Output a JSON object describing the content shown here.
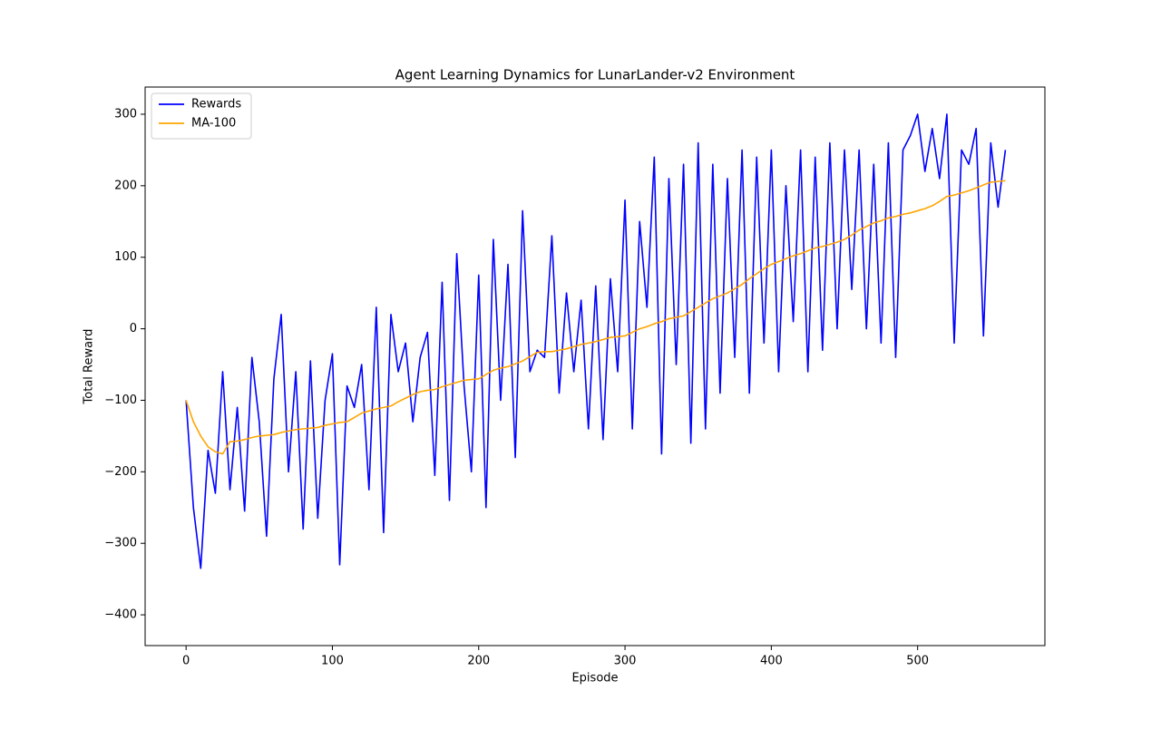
{
  "chart_data": {
    "type": "line",
    "title": "Agent Learning Dynamics for LunarLander-v2 Environment",
    "x_label": "Episode",
    "y_label": "Total Reward",
    "x": [
      0,
      5,
      10,
      15,
      20,
      25,
      30,
      35,
      40,
      45,
      50,
      55,
      60,
      65,
      70,
      75,
      80,
      85,
      90,
      95,
      100,
      105,
      110,
      115,
      120,
      125,
      130,
      135,
      140,
      145,
      150,
      155,
      160,
      165,
      170,
      175,
      180,
      185,
      190,
      195,
      200,
      205,
      210,
      215,
      220,
      225,
      230,
      235,
      240,
      245,
      250,
      255,
      260,
      265,
      270,
      275,
      280,
      285,
      290,
      295,
      300,
      305,
      310,
      315,
      320,
      325,
      330,
      335,
      340,
      345,
      350,
      355,
      360,
      365,
      370,
      375,
      380,
      385,
      390,
      395,
      400,
      405,
      410,
      415,
      420,
      425,
      430,
      435,
      440,
      445,
      450,
      455,
      460,
      465,
      470,
      475,
      480,
      485,
      490,
      495,
      500,
      505,
      510,
      515,
      520,
      525,
      530,
      535,
      540,
      545,
      550,
      555,
      560
    ],
    "series": [
      {
        "name": "Rewards",
        "color": "#0000ff",
        "values": [
          -100,
          -250,
          -335,
          -170,
          -230,
          -60,
          -225,
          -110,
          -255,
          -40,
          -130,
          -290,
          -70,
          20,
          -200,
          -60,
          -280,
          -45,
          -265,
          -100,
          -35,
          -330,
          -80,
          -110,
          -50,
          -225,
          30,
          -285,
          20,
          -60,
          -20,
          -130,
          -40,
          -5,
          -205,
          65,
          -240,
          105,
          -80,
          -200,
          75,
          -250,
          125,
          -100,
          90,
          -180,
          165,
          -60,
          -30,
          -40,
          130,
          -90,
          50,
          -60,
          40,
          -140,
          60,
          -155,
          70,
          -60,
          180,
          -140,
          150,
          30,
          240,
          -175,
          210,
          -50,
          230,
          -160,
          260,
          -140,
          230,
          -90,
          210,
          -40,
          250,
          -90,
          240,
          -20,
          250,
          -60,
          200,
          10,
          250,
          -60,
          240,
          -30,
          260,
          0,
          250,
          55,
          250,
          0,
          230,
          -20,
          260,
          -40,
          250,
          270,
          300,
          220,
          280,
          210,
          300,
          -20,
          250,
          230,
          280,
          -10,
          260,
          170,
          250
        ]
      },
      {
        "name": "MA-100",
        "color": "#ffa500",
        "values": [
          -100,
          -130,
          -150,
          -165,
          -172,
          -175,
          -158,
          -157,
          -155,
          -152,
          -150,
          -149,
          -148,
          -145,
          -143,
          -141,
          -140,
          -139,
          -138,
          -135,
          -133,
          -131,
          -130,
          -124,
          -118,
          -115,
          -112,
          -110,
          -108,
          -102,
          -97,
          -92,
          -88,
          -86,
          -85,
          -81,
          -78,
          -75,
          -72,
          -71,
          -70,
          -64,
          -58,
          -55,
          -53,
          -49,
          -45,
          -39,
          -33,
          -32,
          -32,
          -30,
          -28,
          -25,
          -22,
          -20,
          -18,
          -15,
          -12,
          -11,
          -10,
          -5,
          0,
          3,
          7,
          10,
          14,
          16,
          18,
          24,
          30,
          36,
          42,
          46,
          50,
          56,
          62,
          70,
          77,
          84,
          90,
          94,
          98,
          102,
          105,
          109,
          113,
          115,
          118,
          121,
          125,
          131,
          138,
          143,
          148,
          151,
          155,
          157,
          160,
          162,
          165,
          168,
          172,
          178,
          185,
          187,
          190,
          193,
          197,
          201,
          205,
          206,
          207
        ]
      }
    ],
    "xlim": [
      -28,
      587
    ],
    "ylim": [
      -443,
      338
    ],
    "xticks": [
      0,
      100,
      200,
      300,
      400,
      500
    ],
    "yticks": [
      {
        "value": -400,
        "label": "−400"
      },
      {
        "value": -300,
        "label": "−300"
      },
      {
        "value": -200,
        "label": "−200"
      },
      {
        "value": -100,
        "label": "−100"
      },
      0,
      100,
      200,
      300
    ],
    "legend": "upper left"
  }
}
